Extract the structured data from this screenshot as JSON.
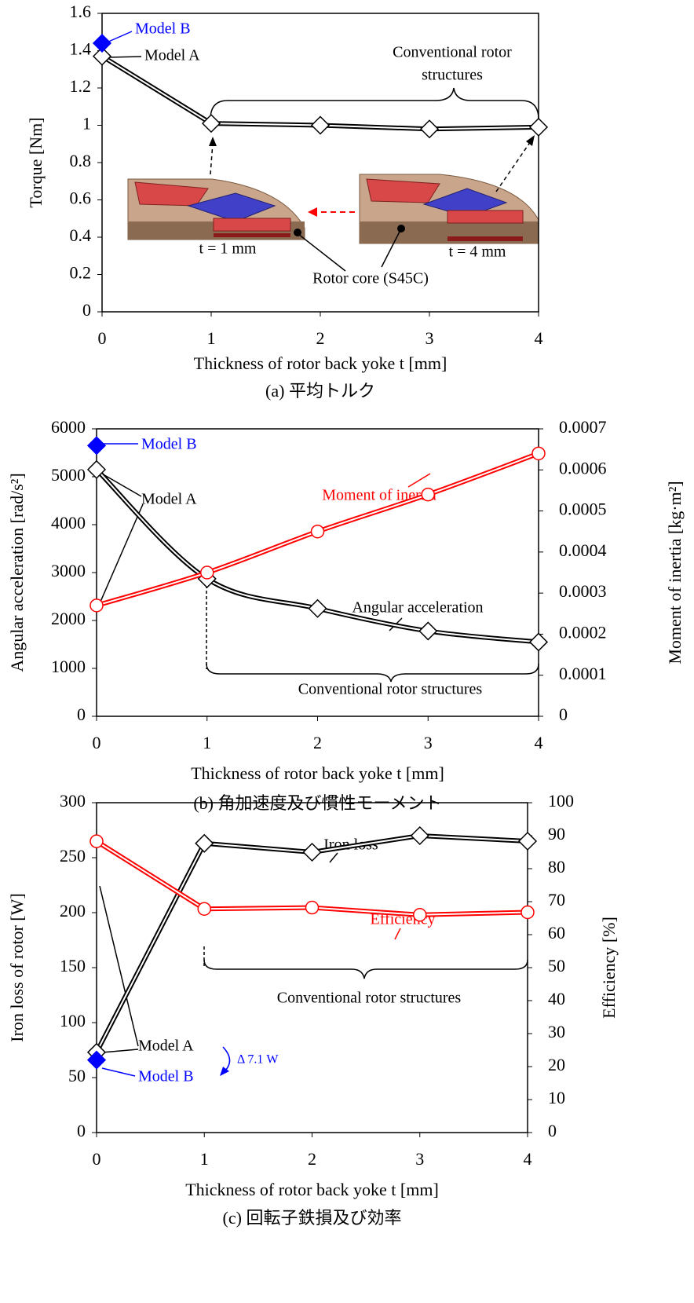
{
  "chart_data": [
    {
      "type": "line",
      "caption": "(a) 平均トルク",
      "x_label": "Thickness of rotor back yoke t [mm]",
      "y_label": "Torque [Nm]",
      "x": [
        0,
        1,
        2,
        3,
        4
      ],
      "xlim": [
        0,
        4
      ],
      "xticks": [
        0,
        1,
        2,
        3,
        4
      ],
      "ylim": [
        0,
        1.6
      ],
      "yticks": [
        0,
        0.2,
        0.4,
        0.6,
        0.8,
        1,
        1.2,
        1.4,
        1.6
      ],
      "series": [
        {
          "color": "#000000",
          "marker": "diamond",
          "marker_face": "#ffffff",
          "values": [
            1.37,
            1.01,
            1.0,
            0.98,
            0.99
          ]
        },
        {
          "name": "Model B",
          "x": [
            0
          ],
          "color": "#0000ff",
          "marker": "diamond",
          "marker_face": "#0000ff",
          "values": [
            1.44
          ]
        }
      ],
      "annotations": [
        "Model A",
        "Conventional rotor",
        "structures",
        "t = 1 mm",
        "t = 4 mm",
        "Rotor core (S45C)"
      ]
    },
    {
      "type": "line",
      "caption": "(b) 角加速度及び慣性モーメント",
      "x_label": "Thickness of rotor back yoke t [mm]",
      "y_label": "Angular acceleration [rad/s²]",
      "y2_label": "Moment of inertia [kg·m²]",
      "smooth": true,
      "x": [
        0,
        1,
        2,
        3,
        4
      ],
      "xlim": [
        0,
        4
      ],
      "xticks": [
        0,
        1,
        2,
        3,
        4
      ],
      "ylim": [
        0,
        6000
      ],
      "yticks": [
        0,
        1000,
        2000,
        3000,
        4000,
        5000,
        6000
      ],
      "y2lim": [
        0,
        0.0007
      ],
      "y2ticks": [
        0,
        0.0001,
        0.0002,
        0.0003,
        0.0004,
        0.0005,
        0.0006,
        0.0007
      ],
      "series": [
        {
          "name": "Angular acceleration",
          "color": "#000000",
          "marker": "diamond",
          "marker_face": "#ffffff",
          "values": [
            5150,
            2870,
            2250,
            1780,
            1550
          ]
        },
        {
          "name": "Moment of inertia",
          "axis": "y2",
          "color": "#ff0000",
          "marker": "circle",
          "marker_face": "#ffffff",
          "values": [
            0.00027,
            0.00035,
            0.00045,
            0.00054,
            0.00064
          ]
        },
        {
          "name": "Model B",
          "x": [
            0
          ],
          "color": "#0000ff",
          "marker": "diamond",
          "marker_face": "#0000ff",
          "values": [
            5650
          ]
        }
      ],
      "annotations": [
        "Model A",
        "Conventional rotor structures"
      ]
    },
    {
      "type": "line",
      "caption": "(c) 回転子鉄損及び効率",
      "x_label": "Thickness of rotor back yoke t [mm]",
      "y_label": "Iron loss of rotor [W]",
      "y2_label": "Efficiency  [%]",
      "x": [
        0,
        1,
        2,
        3,
        4
      ],
      "xlim": [
        0,
        4
      ],
      "xticks": [
        0,
        1,
        2,
        3,
        4
      ],
      "ylim": [
        0,
        300
      ],
      "yticks": [
        0,
        50,
        100,
        150,
        200,
        250,
        300
      ],
      "y2lim": [
        0,
        100
      ],
      "y2ticks": [
        0,
        10,
        20,
        30,
        40,
        50,
        60,
        70,
        80,
        90,
        100
      ],
      "series": [
        {
          "name": "Iron loss",
          "color": "#000000",
          "marker": "diamond",
          "marker_face": "#ffffff",
          "values": [
            73,
            263,
            255,
            270,
            265
          ]
        },
        {
          "name": "Efficiency",
          "axis": "y2",
          "color": "#ff0000",
          "marker": "circle",
          "marker_face": "#ffffff",
          "values": [
            88.3,
            67.8,
            68.2,
            66.0,
            66.8
          ]
        },
        {
          "name": "Model B",
          "x": [
            0
          ],
          "color": "#0000ff",
          "marker": "diamond",
          "marker_face": "#0000ff",
          "values": [
            66
          ]
        }
      ],
      "annotations": [
        "Model A",
        "Conventional rotor structures",
        "Δ 7.1 W"
      ]
    }
  ]
}
